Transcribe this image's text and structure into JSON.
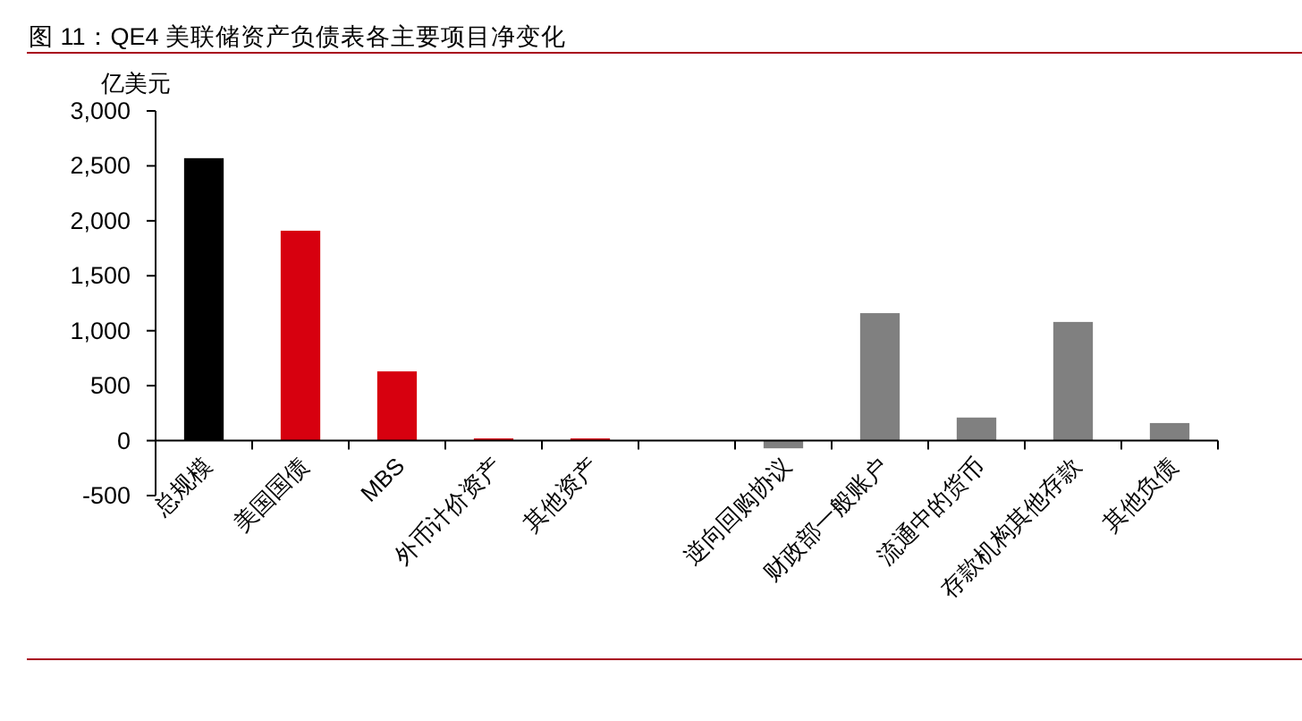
{
  "chart_data": {
    "type": "bar",
    "title": "图 11：QE4 美联储资产负债表各主要项目净变化",
    "ylabel": "亿美元",
    "categories": [
      "总规模",
      "美国国债",
      "MBS",
      "外币计价资产",
      "其他资产",
      null,
      "逆向回购协议",
      "财政部一般账户",
      "流通中的货币",
      "存款机构其他存款",
      "其他负债"
    ],
    "values": [
      2570,
      1910,
      630,
      20,
      20,
      null,
      -70,
      1160,
      210,
      1080,
      160
    ],
    "colors": [
      "#000000",
      "#d7000f",
      "#d7000f",
      "#d7000f",
      "#d7000f",
      null,
      "#808080",
      "#808080",
      "#808080",
      "#808080",
      "#808080"
    ],
    "ylim": [
      -500,
      3000
    ],
    "yticks": [
      -500,
      0,
      500,
      {
        "value": 1000,
        "label": "1,000"
      },
      {
        "value": 1500,
        "label": "1,500"
      },
      {
        "value": 2000,
        "label": "2,000"
      },
      {
        "value": 2500,
        "label": "2,500"
      },
      {
        "value": 3000,
        "label": "3,000"
      }
    ]
  }
}
